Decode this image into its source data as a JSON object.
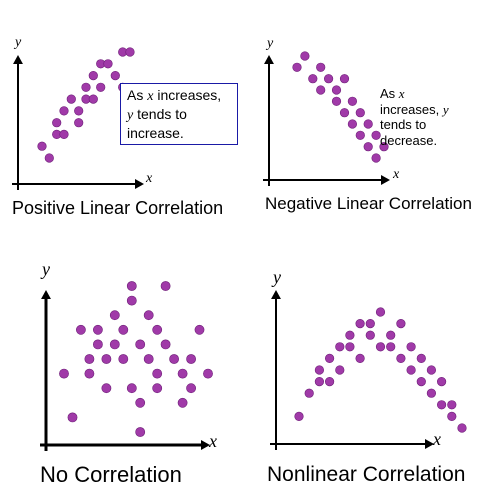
{
  "colors": {
    "dot": "#a03aa8",
    "dot_stroke": "#6e1f78",
    "axis": "#000000",
    "box_border": "#1a1aa6"
  },
  "panels": {
    "positive": {
      "caption": "Positive Linear Correlation",
      "x_letter": "x",
      "y_letter": "y",
      "note_line1_pre": "As ",
      "note_line1_var": "x",
      "note_line1_post": " increases,",
      "note_line2_var": "y",
      "note_line2_post": " tends to",
      "note_line3": "increase."
    },
    "negative": {
      "caption": "Negative Linear Correlation",
      "x_letter": "x",
      "y_letter": "y",
      "note_line1_pre": "As ",
      "note_line1_var": "x",
      "note_line2": "increases, ",
      "note_line2_var": "y",
      "note_line3": "tends to",
      "note_line4": "decrease."
    },
    "none": {
      "caption": "No Correlation",
      "x_letter": "x",
      "y_letter": "y"
    },
    "nonlinear": {
      "caption": "Nonlinear Correlation",
      "x_letter": "x",
      "y_letter": "y"
    }
  },
  "chart_data": [
    {
      "type": "scatter",
      "points": [
        [
          1,
          2
        ],
        [
          2,
          1
        ],
        [
          3,
          3
        ],
        [
          3,
          4
        ],
        [
          4,
          5
        ],
        [
          4,
          3
        ],
        [
          5,
          6
        ],
        [
          6,
          5
        ],
        [
          6,
          4
        ],
        [
          7,
          6
        ],
        [
          7,
          7
        ],
        [
          8,
          8
        ],
        [
          8,
          6
        ],
        [
          9,
          7
        ],
        [
          9,
          9
        ],
        [
          10,
          9
        ],
        [
          11,
          8
        ],
        [
          12,
          10
        ],
        [
          13,
          10
        ],
        [
          12,
          7
        ]
      ]
    },
    {
      "type": "scatter",
      "points": [
        [
          1,
          9
        ],
        [
          2,
          10
        ],
        [
          3,
          8
        ],
        [
          4,
          9
        ],
        [
          4,
          7
        ],
        [
          5,
          8
        ],
        [
          6,
          7
        ],
        [
          6,
          6
        ],
        [
          7,
          8
        ],
        [
          7,
          5
        ],
        [
          8,
          6
        ],
        [
          8,
          4
        ],
        [
          9,
          5
        ],
        [
          9,
          3
        ],
        [
          10,
          4
        ],
        [
          10,
          2
        ],
        [
          11,
          3
        ],
        [
          11,
          1
        ],
        [
          12,
          2
        ]
      ]
    },
    {
      "type": "scatter",
      "points": [
        [
          1,
          4
        ],
        [
          2,
          1
        ],
        [
          3,
          7
        ],
        [
          4,
          5
        ],
        [
          4,
          4
        ],
        [
          5,
          7
        ],
        [
          5,
          6
        ],
        [
          6,
          5
        ],
        [
          6,
          3
        ],
        [
          7,
          8
        ],
        [
          7,
          6
        ],
        [
          8,
          7
        ],
        [
          8,
          5
        ],
        [
          9,
          9
        ],
        [
          9,
          10
        ],
        [
          9,
          3
        ],
        [
          10,
          6
        ],
        [
          10,
          2
        ],
        [
          11,
          8
        ],
        [
          11,
          5
        ],
        [
          12,
          4
        ],
        [
          12,
          3
        ],
        [
          13,
          10
        ],
        [
          13,
          6
        ],
        [
          14,
          5
        ],
        [
          15,
          2
        ],
        [
          15,
          4
        ],
        [
          16,
          3
        ],
        [
          16,
          5
        ],
        [
          17,
          7
        ],
        [
          10,
          0
        ],
        [
          18,
          4
        ],
        [
          12,
          7
        ]
      ]
    },
    {
      "type": "scatter",
      "points": [
        [
          1,
          1
        ],
        [
          2,
          3
        ],
        [
          3,
          5
        ],
        [
          3,
          4
        ],
        [
          4,
          6
        ],
        [
          4,
          4
        ],
        [
          5,
          7
        ],
        [
          5,
          5
        ],
        [
          6,
          8
        ],
        [
          6,
          7
        ],
        [
          7,
          9
        ],
        [
          7,
          6
        ],
        [
          8,
          8
        ],
        [
          8,
          9
        ],
        [
          9,
          7
        ],
        [
          9,
          10
        ],
        [
          10,
          8
        ],
        [
          10,
          7
        ],
        [
          11,
          9
        ],
        [
          11,
          6
        ],
        [
          12,
          7
        ],
        [
          12,
          5
        ],
        [
          13,
          6
        ],
        [
          13,
          4
        ],
        [
          14,
          5
        ],
        [
          14,
          3
        ],
        [
          15,
          4
        ],
        [
          15,
          2
        ],
        [
          16,
          2
        ],
        [
          16,
          1
        ],
        [
          17,
          0
        ]
      ]
    }
  ]
}
